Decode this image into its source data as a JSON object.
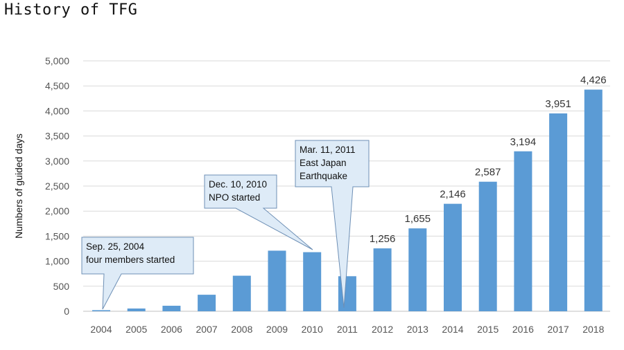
{
  "page_title": "History of TFG",
  "chart_data": {
    "type": "bar",
    "title": "",
    "xlabel": "",
    "ylabel": "Numbers of guided days",
    "ylim": [
      0,
      5000
    ],
    "yticks": [
      0,
      500,
      1000,
      1500,
      2000,
      2500,
      3000,
      3500,
      4000,
      4500,
      5000
    ],
    "ytick_labels": [
      "0",
      "500",
      "1,000",
      "1,500",
      "2,000",
      "2,500",
      "3,000",
      "3,500",
      "4,000",
      "4,500",
      "5,000"
    ],
    "categories": [
      "2004",
      "2005",
      "2006",
      "2007",
      "2008",
      "2009",
      "2010",
      "2011",
      "2012",
      "2013",
      "2014",
      "2015",
      "2016",
      "2017",
      "2018"
    ],
    "values": [
      22,
      55,
      110,
      330,
      710,
      1210,
      1180,
      700,
      1256,
      1655,
      2146,
      2587,
      3194,
      3951,
      4426
    ],
    "data_labels": [
      null,
      null,
      null,
      null,
      null,
      null,
      null,
      null,
      "1,256",
      "1,655",
      "2,146",
      "2,587",
      "3,194",
      "3,951",
      "4,426"
    ],
    "bar_color": "#5b9bd5",
    "grid": true,
    "legend": "none",
    "annotations": [
      {
        "category": "2004",
        "lines": [
          "Sep. 25, 2004",
          "four members started"
        ]
      },
      {
        "category": "2010",
        "lines": [
          "Dec. 10, 2010",
          "NPO started"
        ]
      },
      {
        "category": "2011",
        "lines": [
          "Mar. 11, 2011",
          "East Japan",
          "Earthquake"
        ]
      }
    ]
  }
}
